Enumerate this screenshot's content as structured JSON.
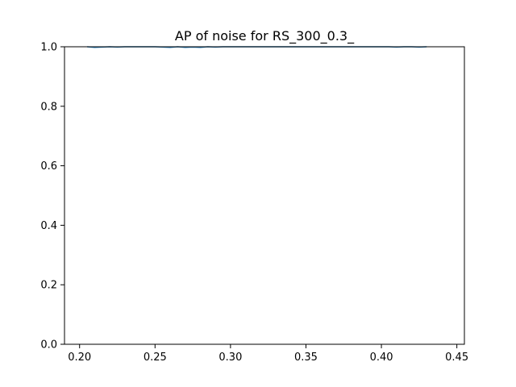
{
  "chart_data": {
    "type": "line",
    "title": "AP of noise for RS_300_0.3_",
    "xlabel": "",
    "ylabel": "",
    "xlim": [
      0.19,
      0.455
    ],
    "ylim": [
      0.0,
      1.0
    ],
    "x_ticks": [
      "0.20",
      "0.25",
      "0.30",
      "0.35",
      "0.40",
      "0.45"
    ],
    "y_ticks": [
      "0.0",
      "0.2",
      "0.4",
      "0.6",
      "0.8",
      "1.0"
    ],
    "grid": false,
    "legend": "none",
    "series": [
      {
        "color": "#1f77b4",
        "x": [
          0.205,
          0.21,
          0.215,
          0.22,
          0.225,
          0.23,
          0.235,
          0.24,
          0.245,
          0.25,
          0.255,
          0.26,
          0.265,
          0.27,
          0.275,
          0.28,
          0.285,
          0.29,
          0.295,
          0.3,
          0.305,
          0.31,
          0.315,
          0.32,
          0.325,
          0.33,
          0.335,
          0.34,
          0.345,
          0.35,
          0.355,
          0.36,
          0.365,
          0.37,
          0.375,
          0.38,
          0.385,
          0.39,
          0.395,
          0.4,
          0.405,
          0.41,
          0.415,
          0.42,
          0.425,
          0.43
        ],
        "y": [
          1.0,
          0.998,
          0.999,
          1.0,
          0.999,
          1.0,
          1.0,
          1.0,
          1.0,
          1.0,
          0.999,
          0.998,
          1.0,
          0.998,
          0.999,
          0.998,
          1.0,
          0.999,
          1.0,
          1.0,
          1.0,
          1.0,
          1.0,
          1.0,
          1.0,
          1.0,
          1.0,
          1.0,
          1.0,
          1.0,
          1.0,
          1.0,
          1.0,
          1.0,
          1.0,
          1.0,
          1.0,
          1.0,
          1.0,
          1.0,
          1.0,
          0.999,
          1.0,
          1.0,
          0.999,
          1.0
        ]
      }
    ]
  }
}
